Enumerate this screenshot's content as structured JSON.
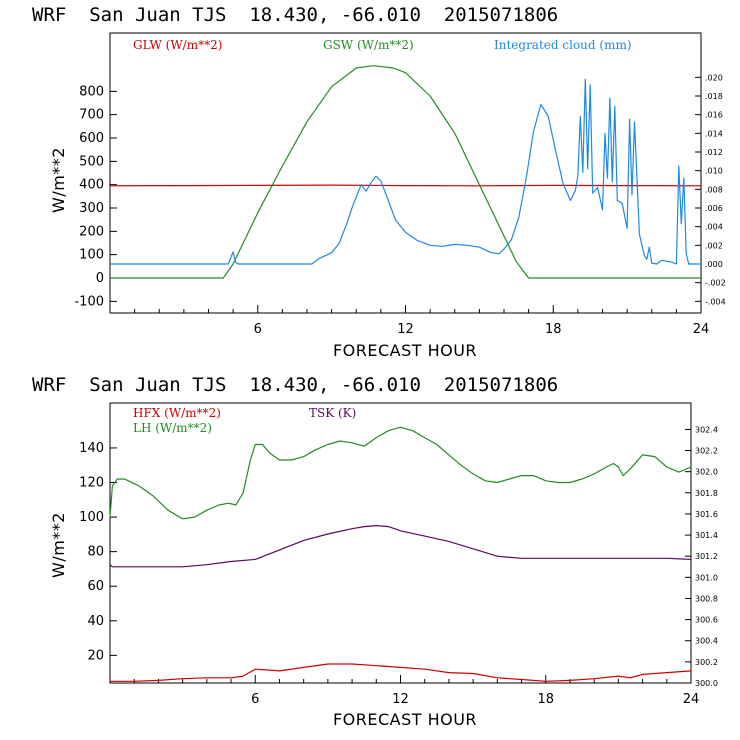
{
  "chart_data": [
    {
      "type": "line",
      "title": "WRF  San Juan TJS  18.430, -66.010  2015071806",
      "xlabel": "FORECAST HOUR",
      "ylabel": "W/m**2",
      "xlim": [
        0,
        24
      ],
      "ylim": [
        -150,
        1050
      ],
      "x_ticks": [
        "6",
        "12",
        "18",
        "24"
      ],
      "y_ticks": [
        "-100",
        "0",
        "100",
        "200",
        "300",
        "400",
        "500",
        "600",
        "700",
        "800"
      ],
      "y2lim": [
        -0.00525,
        0.02475
      ],
      "y2_ticks": [
        "-.004",
        "-.002",
        ".000",
        ".002",
        ".004",
        ".006",
        ".008",
        ".010",
        ".012",
        ".014",
        ".016",
        ".018",
        ".020"
      ],
      "grid": false,
      "legend_position": "top",
      "series": [
        {
          "name": "GLW (W/m**2)",
          "color": "#cc0000",
          "axis": "left",
          "x": [
            0,
            3,
            6,
            9,
            12,
            15,
            18,
            21,
            24
          ],
          "y": [
            395,
            396,
            397,
            398,
            396,
            395,
            397,
            396,
            395
          ]
        },
        {
          "name": "GSW (W/m**2)",
          "color": "#228b22",
          "axis": "left",
          "x": [
            0,
            4.6,
            5,
            6,
            7,
            8,
            9,
            10,
            10.7,
            11.5,
            12,
            13,
            14,
            15,
            16,
            16.5,
            17,
            24
          ],
          "y": [
            0,
            0,
            60,
            280,
            480,
            670,
            820,
            900,
            910,
            900,
            880,
            780,
            620,
            400,
            180,
            70,
            0,
            0
          ]
        },
        {
          "name": "Integrated cloud (mm)",
          "color": "#1e88e5",
          "axis": "right",
          "x": [
            0,
            4.8,
            5,
            5.1,
            5.2,
            8.2,
            8.5,
            9,
            9.3,
            9.6,
            9.8,
            10,
            10.2,
            10.4,
            10.6,
            10.8,
            11,
            11.3,
            11.6,
            12,
            12.5,
            13,
            13.5,
            14,
            14.5,
            15,
            15.5,
            15.8,
            16,
            16.3,
            16.6,
            16.9,
            17.2,
            17.5,
            17.8,
            18.1,
            18.4,
            18.7,
            18.9,
            19,
            19.1,
            19.2,
            19.3,
            19.4,
            19.5,
            19.6,
            19.8,
            20,
            20.1,
            20.2,
            20.3,
            20.4,
            20.5,
            20.6,
            20.8,
            21,
            21.1,
            21.2,
            21.3,
            21.5,
            21.7,
            21.8,
            21.9,
            22,
            22.2,
            22.4,
            22.6,
            22.8,
            23,
            23.1,
            23.2,
            23.3,
            23.4,
            23.5,
            24
          ],
          "y": [
            0.0,
            0.0,
            0.0013,
            0.0002,
            0.0,
            0.0,
            0.0006,
            0.0012,
            0.0022,
            0.0042,
            0.0058,
            0.0072,
            0.0085,
            0.0078,
            0.0087,
            0.0094,
            0.0089,
            0.0068,
            0.0047,
            0.0034,
            0.0025,
            0.002,
            0.0019,
            0.0021,
            0.002,
            0.0018,
            0.0012,
            0.0011,
            0.0016,
            0.0026,
            0.005,
            0.0092,
            0.0142,
            0.0171,
            0.0158,
            0.0121,
            0.0086,
            0.0068,
            0.0079,
            0.0095,
            0.0158,
            0.0098,
            0.0198,
            0.0102,
            0.0192,
            0.0076,
            0.0082,
            0.0058,
            0.014,
            0.0092,
            0.0178,
            0.0088,
            0.0169,
            0.0068,
            0.0065,
            0.0038,
            0.0155,
            0.0074,
            0.0152,
            0.0032,
            0.0009,
            0.0005,
            0.0018,
            0.0001,
            0.0,
            0.0004,
            0.0003,
            0.0002,
            0.0,
            0.0105,
            0.0043,
            0.0092,
            0.0011,
            0.0,
            0.0
          ]
        }
      ]
    },
    {
      "type": "line",
      "title": "WRF  San Juan TJS  18.430, -66.010  2015071806",
      "xlabel": "FORECAST HOUR",
      "ylabel": "W/m**2",
      "xlim": [
        0,
        24
      ],
      "ylim": [
        4,
        166
      ],
      "x_ticks": [
        "6",
        "12",
        "18",
        "24"
      ],
      "y_ticks": [
        "20",
        "40",
        "60",
        "80",
        "100",
        "120",
        "140"
      ],
      "y2lim": [
        300.0,
        302.65
      ],
      "y2_ticks": [
        "300.0",
        "300.2",
        "300.4",
        "300.6",
        "300.8",
        "301.0",
        "301.2",
        "301.4",
        "301.6",
        "301.8",
        "302.0",
        "302.2",
        "302.4"
      ],
      "grid": false,
      "legend_position": "top",
      "series": [
        {
          "name": "HFX (W/m**2)",
          "color": "#cc0000",
          "axis": "left",
          "x": [
            0,
            1,
            2,
            3,
            4,
            5,
            5.5,
            6,
            6.5,
            7,
            8,
            9,
            10,
            11,
            12,
            13,
            14,
            15,
            16,
            17,
            18,
            19,
            20,
            21,
            21.5,
            22,
            23,
            24
          ],
          "y": [
            5,
            5,
            5.5,
            6.5,
            7,
            7,
            8,
            12,
            11.5,
            11,
            13,
            15,
            15,
            14,
            13,
            12,
            10,
            9.5,
            7,
            6,
            5,
            5.5,
            6.5,
            8,
            7,
            9,
            10,
            11
          ]
        },
        {
          "name": "LH (W/m**2)",
          "color": "#228b22",
          "axis": "left",
          "x": [
            0,
            0.1,
            0.3,
            0.6,
            1.2,
            1.8,
            2.4,
            3,
            3.5,
            4,
            4.5,
            4.9,
            5.2,
            5.5,
            5.8,
            6,
            6.3,
            6.6,
            7,
            7.5,
            8,
            8.5,
            9,
            9.5,
            10,
            10.5,
            11,
            11.5,
            12,
            12.5,
            13,
            13.5,
            14,
            14.5,
            15,
            15.5,
            16,
            16.5,
            17,
            17.5,
            18,
            18.5,
            19,
            19.5,
            20,
            20.5,
            20.8,
            21,
            21.2,
            21.5,
            22,
            22.5,
            23,
            23.5,
            24
          ],
          "y": [
            100,
            118,
            122,
            122,
            118,
            112,
            104,
            99,
            100,
            104,
            107,
            108,
            107,
            114,
            133,
            142,
            142,
            137,
            133,
            133,
            135,
            139,
            142,
            144,
            143,
            141,
            146,
            150,
            152,
            150,
            146,
            142,
            136,
            130,
            125,
            121,
            120,
            122,
            124,
            124,
            121,
            120,
            120,
            122,
            125,
            129,
            131,
            129,
            124,
            128,
            136,
            135,
            129,
            126,
            129
          ]
        },
        {
          "name": "TSK (K)",
          "color": "#5a0a5a",
          "axis": "right",
          "x": [
            0,
            0.1,
            0.3,
            1,
            2,
            3,
            4,
            5,
            6,
            7,
            8,
            9,
            10,
            10.5,
            11,
            11.5,
            12,
            13,
            14,
            15,
            16,
            17,
            18,
            19,
            20,
            21,
            22,
            23,
            24
          ],
          "y": [
            301.12,
            301.1,
            301.1,
            301.1,
            301.1,
            301.1,
            301.12,
            301.15,
            301.17,
            301.26,
            301.35,
            301.41,
            301.46,
            301.48,
            301.49,
            301.48,
            301.44,
            301.39,
            301.34,
            301.27,
            301.2,
            301.18,
            301.18,
            301.18,
            301.18,
            301.18,
            301.18,
            301.18,
            301.17
          ]
        }
      ]
    }
  ]
}
